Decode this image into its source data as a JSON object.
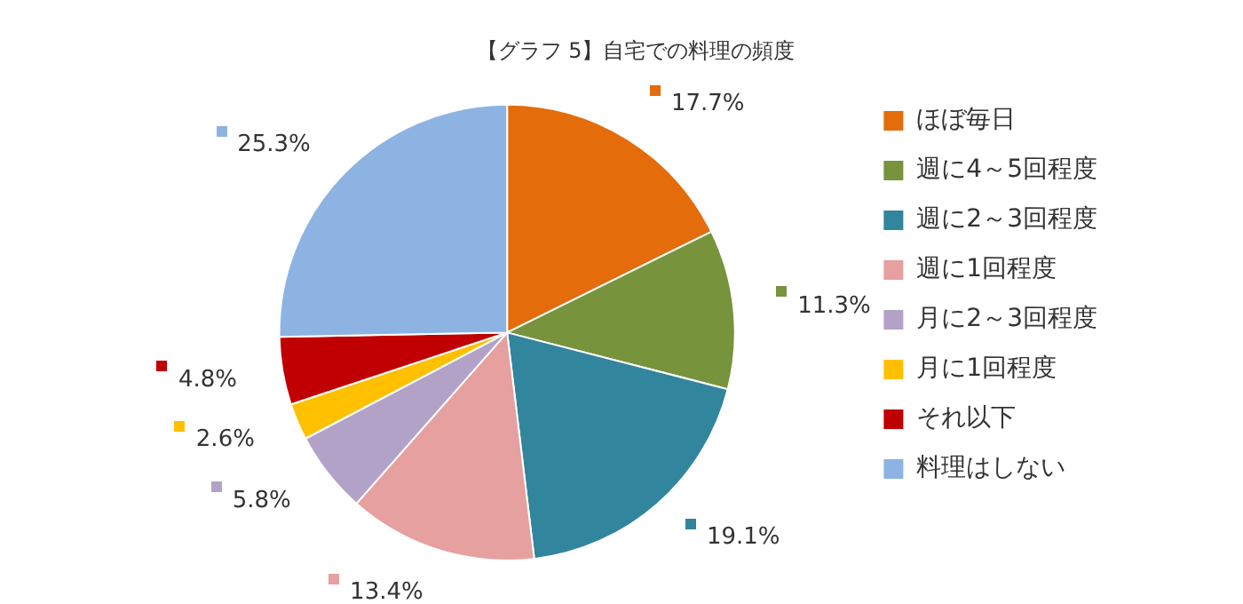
{
  "chart_data": {
    "type": "pie",
    "title": "【グラフ 5】自宅での料理の頻度",
    "categories": [
      "ほぼ毎日",
      "週に4～5回程度",
      "週に2～3回程度",
      "週に1回程度",
      "月に2～3回程度",
      "月に1回程度",
      "それ以下",
      "料理はしない"
    ],
    "values": [
      17.7,
      11.3,
      19.1,
      13.4,
      5.8,
      2.6,
      4.8,
      25.3
    ],
    "colors": [
      "#e46c0a",
      "#77933c",
      "#31859c",
      "#e6a09f",
      "#b3a2c7",
      "#ffc000",
      "#c00000",
      "#8db3e2"
    ],
    "value_labels": [
      "17.7%",
      "11.3%",
      "19.1%",
      "13.4%",
      "5.8%",
      "2.6%",
      "4.8%",
      "25.3%"
    ],
    "legend": "right"
  }
}
